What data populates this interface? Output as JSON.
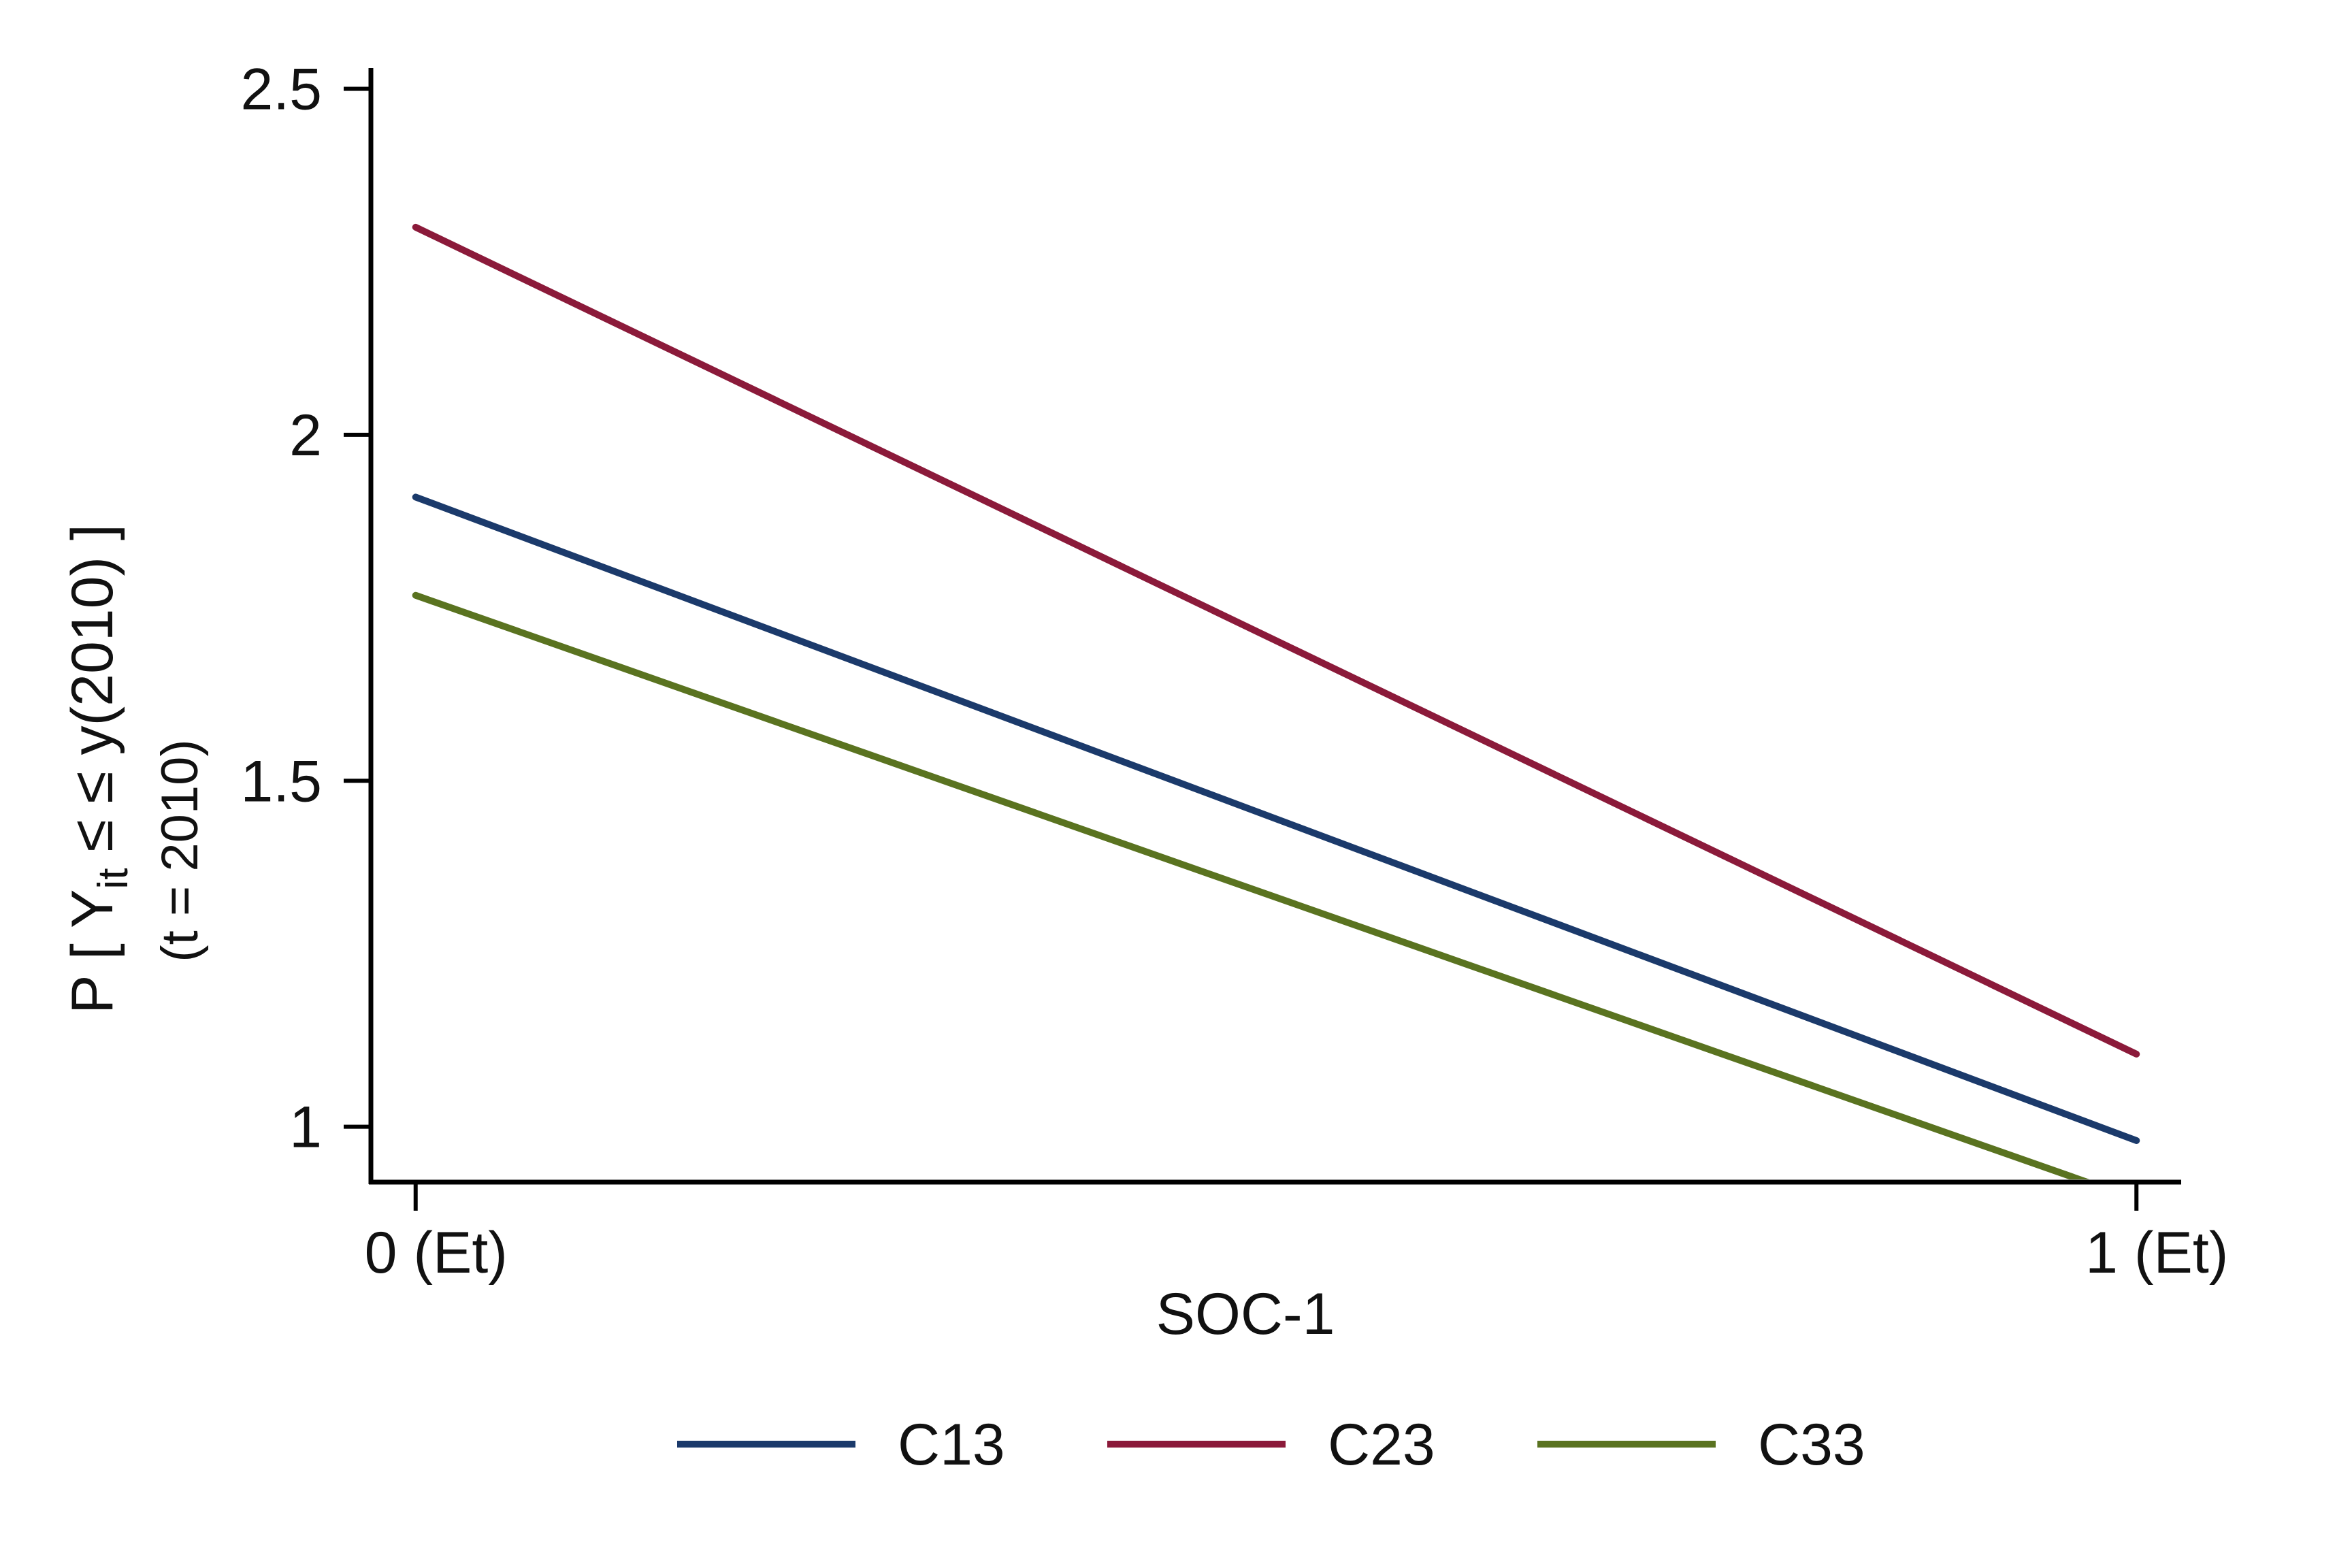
{
  "chart_data": {
    "type": "line",
    "xlabel": "SOC-1",
    "ylabel": {
      "line1_prefix": "P [ Y",
      "line1_sub": "it",
      "line1_suffix": " ≤ ≤ y(2010) ]",
      "line2": "(t = 2010)"
    },
    "x": [
      0,
      1
    ],
    "x_ticks": [
      {
        "value": 0,
        "label": "0 (Et)"
      },
      {
        "value": 1,
        "label": "1 (Et)"
      }
    ],
    "y_ticks": [
      {
        "value": 1,
        "label": "1"
      },
      {
        "value": 1.5,
        "label": "1.5"
      },
      {
        "value": 2,
        "label": "2"
      },
      {
        "value": 2.5,
        "label": "2.5"
      }
    ],
    "xlim": [
      -0.026,
      1.026
    ],
    "ylim": [
      0.92,
      2.53
    ],
    "grid": false,
    "legend_position": "bottom",
    "series": [
      {
        "name": "C13",
        "color": "#1b3a6b",
        "values": [
          1.91,
          0.98
        ]
      },
      {
        "name": "C23",
        "color": "#8b1a3a",
        "values": [
          2.3,
          1.105
        ]
      },
      {
        "name": "C33",
        "color": "#5a7320",
        "values": [
          1.768,
          0.895
        ]
      }
    ]
  }
}
